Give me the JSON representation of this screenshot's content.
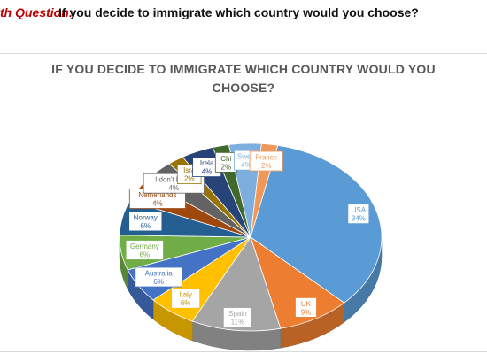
{
  "question": {
    "prefix": "th Question:",
    "text": "If you decide to immigrate which country would you choose?"
  },
  "chart_data": {
    "type": "pie",
    "title": "IF YOU DECIDE TO IMMIGRATE WHICH COUNTRY WOULD YOU CHOOSE?",
    "is_3d": true,
    "slices": [
      {
        "label": "USA",
        "display_label": "USA",
        "value": 34,
        "value_label": "34%",
        "color": "#5b9bd5"
      },
      {
        "label": "UK",
        "display_label": "UK",
        "value": 9,
        "value_label": "9%",
        "color": "#ed7d31"
      },
      {
        "label": "Spain",
        "display_label": "Spain",
        "value": 11,
        "value_label": "11%",
        "color": "#a5a5a5"
      },
      {
        "label": "Italy",
        "display_label": "Italy",
        "value": 6,
        "value_label": "6%",
        "color": "#ffc000"
      },
      {
        "label": "Australia",
        "display_label": "Australia",
        "value": 6,
        "value_label": "6%",
        "color": "#4472c4"
      },
      {
        "label": "Germany",
        "display_label": "Germany",
        "value": 6,
        "value_label": "6%",
        "color": "#70ad47"
      },
      {
        "label": "Norway",
        "display_label": "Norway",
        "value": 6,
        "value_label": "6%",
        "color": "#255e91"
      },
      {
        "label": "Netherlands",
        "display_label": "Netherlands",
        "value": 4,
        "value_label": "4%",
        "color": "#9e480e"
      },
      {
        "label": "I don't know",
        "display_label": "I don't know",
        "value": 4,
        "value_label": "4%",
        "color": "#636363"
      },
      {
        "label": "Israel",
        "display_label": "Isra",
        "value": 2,
        "value_label": "2%",
        "color": "#997300"
      },
      {
        "label": "Ireland",
        "display_label": "Irela",
        "value": 4,
        "value_label": "4%",
        "color": "#264478"
      },
      {
        "label": "China",
        "display_label": "Chi",
        "value": 2,
        "value_label": "2%",
        "color": "#43682b"
      },
      {
        "label": "Sweden",
        "display_label": "Swed",
        "value": 4,
        "value_label": "4%",
        "color": "#7cafdd"
      },
      {
        "label": "France",
        "display_label": "France",
        "value": 2,
        "value_label": "2%",
        "color": "#f1975a"
      }
    ]
  }
}
